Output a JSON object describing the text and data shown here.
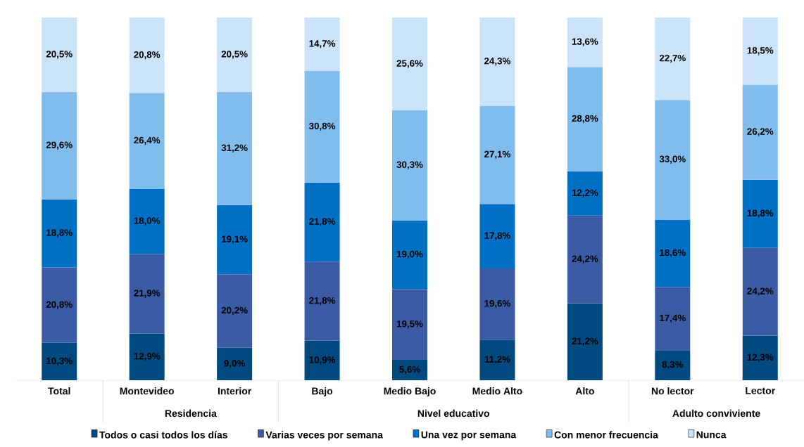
{
  "chart_data": {
    "type": "bar",
    "stacked": true,
    "ylim": [
      0,
      100
    ],
    "tick_labels": "x",
    "legend": "bottom",
    "data_labels": true,
    "categories": [
      "Total",
      "Montevideo",
      "Interior",
      "Bajo",
      "Medio Bajo",
      "Medio Alto",
      "Alto",
      "No lector",
      "Lector"
    ],
    "series": [
      {
        "name": "Todos o casi todos los días",
        "color": "#004a7f",
        "values": [
          10.3,
          12.9,
          9.0,
          10.9,
          5.6,
          11.2,
          21.2,
          8.3,
          12.3
        ],
        "value_labels": [
          "10,3%",
          "12,9%",
          "9,0%",
          "10,9%",
          "5,6%",
          "11,2%",
          "21,2%",
          "8,3%",
          "12,3%"
        ]
      },
      {
        "name": "Varias veces por semana",
        "color": "#3b5ba5",
        "values": [
          20.8,
          21.9,
          20.2,
          21.8,
          19.5,
          19.6,
          24.2,
          17.4,
          24.2
        ],
        "value_labels": [
          "20,8%",
          "21,9%",
          "20,2%",
          "21,8%",
          "19,5%",
          "19,6%",
          "24,2%",
          "17,4%",
          "24,2%"
        ]
      },
      {
        "name": "Una vez por semana",
        "color": "#0070c5",
        "values": [
          18.8,
          18.0,
          19.1,
          21.8,
          19.0,
          17.8,
          12.2,
          18.6,
          18.8
        ],
        "value_labels": [
          "18,8%",
          "18,0%",
          "19,1%",
          "21,8%",
          "19,0%",
          "17,8%",
          "12,2%",
          "18,6%",
          "18,8%"
        ]
      },
      {
        "name": "Con menor frecuencia",
        "color": "#80bded",
        "values": [
          29.6,
          26.4,
          31.2,
          30.8,
          30.3,
          27.1,
          28.8,
          33.0,
          26.2
        ],
        "value_labels": [
          "29,6%",
          "26,4%",
          "31,2%",
          "30,8%",
          "30,3%",
          "27,1%",
          "28,8%",
          "33,0%",
          "26,2%"
        ]
      },
      {
        "name": "Nunca",
        "color": "#cbe3f8",
        "values": [
          20.5,
          20.8,
          20.5,
          14.7,
          25.6,
          24.3,
          13.6,
          22.7,
          18.5
        ],
        "value_labels": [
          "20,5%",
          "20,8%",
          "20,5%",
          "14,7%",
          "25,6%",
          "24,3%",
          "13,6%",
          "22,7%",
          "18,5%"
        ]
      }
    ],
    "annotations": [
      "Residencia",
      "Nivel educativo",
      "Adulto conviviente"
    ]
  }
}
